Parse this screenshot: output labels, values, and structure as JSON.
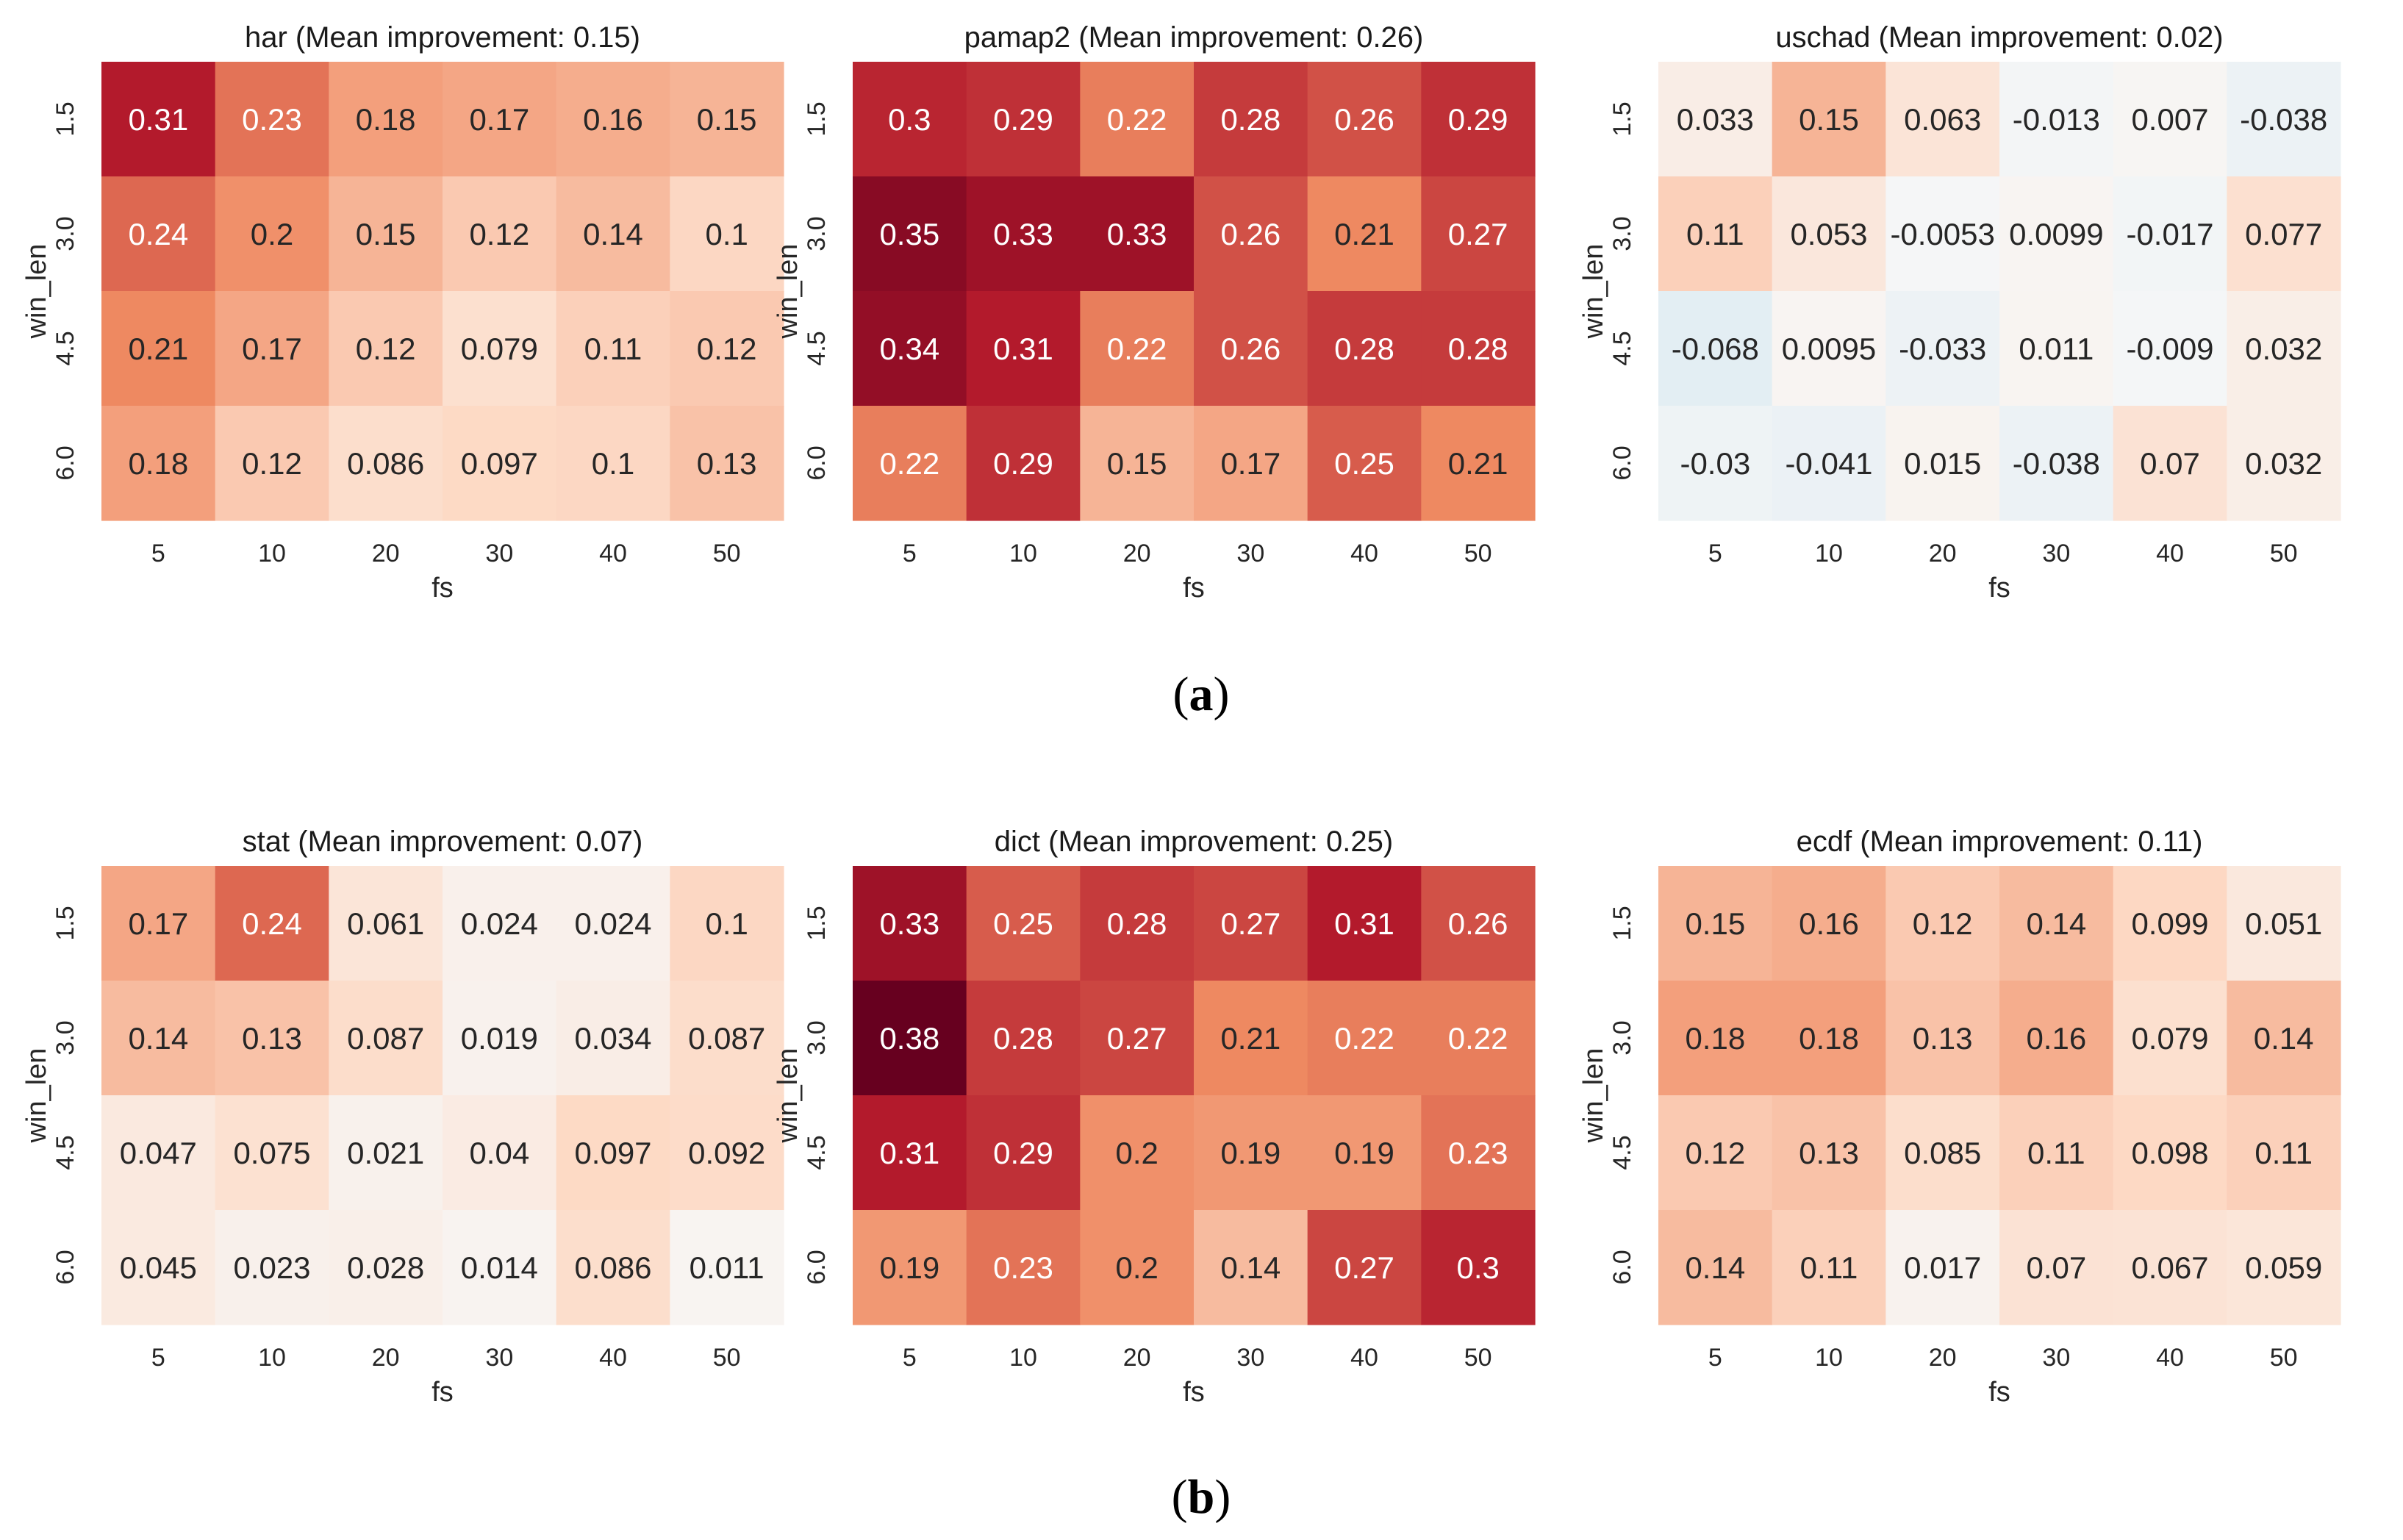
{
  "figure": {
    "panel_labels": [
      {
        "open": "(",
        "letter": "a",
        "close": ")"
      },
      {
        "open": "(",
        "letter": "b",
        "close": ")"
      }
    ]
  },
  "colors": {
    "negative_max": "#2166ac",
    "negative_light": "#d1e5f0",
    "zero": "#f7f7f7",
    "positive_light": "#fddbc7",
    "positive_mid": "#ef8a62",
    "positive_strong": "#b2182b",
    "positive_max": "#67001f"
  },
  "color_scale": {
    "vmin": -0.38,
    "vmax": 0.38
  },
  "chart_data": [
    {
      "type": "heatmap",
      "title": "har (Mean improvement: 0.15)",
      "xlabel": "fs",
      "ylabel": "win_len",
      "x_categories": [
        "5",
        "10",
        "20",
        "30",
        "40",
        "50"
      ],
      "y_categories": [
        "1.5",
        "3.0",
        "4.5",
        "6.0"
      ],
      "values": [
        [
          0.31,
          0.23,
          0.18,
          0.17,
          0.16,
          0.15
        ],
        [
          0.24,
          0.2,
          0.15,
          0.12,
          0.14,
          0.1
        ],
        [
          0.21,
          0.17,
          0.12,
          0.079,
          0.11,
          0.12
        ],
        [
          0.18,
          0.12,
          0.086,
          0.097,
          0.1,
          0.13
        ]
      ],
      "labels": [
        [
          "0.31",
          "0.23",
          "0.18",
          "0.17",
          "0.16",
          "0.15"
        ],
        [
          "0.24",
          "0.2",
          "0.15",
          "0.12",
          "0.14",
          "0.1"
        ],
        [
          "0.21",
          "0.17",
          "0.12",
          "0.079",
          "0.11",
          "0.12"
        ],
        [
          "0.18",
          "0.12",
          "0.086",
          "0.097",
          "0.1",
          "0.13"
        ]
      ]
    },
    {
      "type": "heatmap",
      "title": "pamap2 (Mean improvement: 0.26)",
      "xlabel": "fs",
      "ylabel": "win_len",
      "x_categories": [
        "5",
        "10",
        "20",
        "30",
        "40",
        "50"
      ],
      "y_categories": [
        "1.5",
        "3.0",
        "4.5",
        "6.0"
      ],
      "values": [
        [
          0.3,
          0.29,
          0.22,
          0.28,
          0.26,
          0.29
        ],
        [
          0.35,
          0.33,
          0.33,
          0.26,
          0.21,
          0.27
        ],
        [
          0.34,
          0.31,
          0.22,
          0.26,
          0.28,
          0.28
        ],
        [
          0.22,
          0.29,
          0.15,
          0.17,
          0.25,
          0.21
        ]
      ],
      "labels": [
        [
          "0.3",
          "0.29",
          "0.22",
          "0.28",
          "0.26",
          "0.29"
        ],
        [
          "0.35",
          "0.33",
          "0.33",
          "0.26",
          "0.21",
          "0.27"
        ],
        [
          "0.34",
          "0.31",
          "0.22",
          "0.26",
          "0.28",
          "0.28"
        ],
        [
          "0.22",
          "0.29",
          "0.15",
          "0.17",
          "0.25",
          "0.21"
        ]
      ]
    },
    {
      "type": "heatmap",
      "title": "uschad (Mean improvement: 0.02)",
      "xlabel": "fs",
      "ylabel": "win_len",
      "x_categories": [
        "5",
        "10",
        "20",
        "30",
        "40",
        "50"
      ],
      "y_categories": [
        "1.5",
        "3.0",
        "4.5",
        "6.0"
      ],
      "values": [
        [
          0.033,
          0.15,
          0.063,
          -0.013,
          0.007,
          -0.038
        ],
        [
          0.11,
          0.053,
          -0.0053,
          0.0099,
          -0.017,
          0.077
        ],
        [
          -0.068,
          0.0095,
          -0.033,
          0.011,
          -0.009,
          0.032
        ],
        [
          -0.03,
          -0.041,
          0.015,
          -0.038,
          0.07,
          0.032
        ]
      ],
      "labels": [
        [
          "0.033",
          "0.15",
          "0.063",
          "-0.013",
          "0.007",
          "-0.038"
        ],
        [
          "0.11",
          "0.053",
          "-0.0053",
          "0.0099",
          "-0.017",
          "0.077"
        ],
        [
          "-0.068",
          "0.0095",
          "-0.033",
          "0.011",
          "-0.009",
          "0.032"
        ],
        [
          "-0.03",
          "-0.041",
          "0.015",
          "-0.038",
          "0.07",
          "0.032"
        ]
      ]
    },
    {
      "type": "heatmap",
      "title": "stat (Mean improvement: 0.07)",
      "xlabel": "fs",
      "ylabel": "win_len",
      "x_categories": [
        "5",
        "10",
        "20",
        "30",
        "40",
        "50"
      ],
      "y_categories": [
        "1.5",
        "3.0",
        "4.5",
        "6.0"
      ],
      "values": [
        [
          0.17,
          0.24,
          0.061,
          0.024,
          0.024,
          0.1
        ],
        [
          0.14,
          0.13,
          0.087,
          0.019,
          0.034,
          0.087
        ],
        [
          0.047,
          0.075,
          0.021,
          0.04,
          0.097,
          0.092
        ],
        [
          0.045,
          0.023,
          0.028,
          0.014,
          0.086,
          0.011
        ]
      ],
      "labels": [
        [
          "0.17",
          "0.24",
          "0.061",
          "0.024",
          "0.024",
          "0.1"
        ],
        [
          "0.14",
          "0.13",
          "0.087",
          "0.019",
          "0.034",
          "0.087"
        ],
        [
          "0.047",
          "0.075",
          "0.021",
          "0.04",
          "0.097",
          "0.092"
        ],
        [
          "0.045",
          "0.023",
          "0.028",
          "0.014",
          "0.086",
          "0.011"
        ]
      ]
    },
    {
      "type": "heatmap",
      "title": "dict (Mean improvement: 0.25)",
      "xlabel": "fs",
      "ylabel": "win_len",
      "x_categories": [
        "5",
        "10",
        "20",
        "30",
        "40",
        "50"
      ],
      "y_categories": [
        "1.5",
        "3.0",
        "4.5",
        "6.0"
      ],
      "values": [
        [
          0.33,
          0.25,
          0.28,
          0.27,
          0.31,
          0.26
        ],
        [
          0.38,
          0.28,
          0.27,
          0.21,
          0.22,
          0.22
        ],
        [
          0.31,
          0.29,
          0.2,
          0.19,
          0.19,
          0.23
        ],
        [
          0.19,
          0.23,
          0.2,
          0.14,
          0.27,
          0.3
        ]
      ],
      "labels": [
        [
          "0.33",
          "0.25",
          "0.28",
          "0.27",
          "0.31",
          "0.26"
        ],
        [
          "0.38",
          "0.28",
          "0.27",
          "0.21",
          "0.22",
          "0.22"
        ],
        [
          "0.31",
          "0.29",
          "0.2",
          "0.19",
          "0.19",
          "0.23"
        ],
        [
          "0.19",
          "0.23",
          "0.2",
          "0.14",
          "0.27",
          "0.3"
        ]
      ]
    },
    {
      "type": "heatmap",
      "title": "ecdf (Mean improvement: 0.11)",
      "xlabel": "fs",
      "ylabel": "win_len",
      "x_categories": [
        "5",
        "10",
        "20",
        "30",
        "40",
        "50"
      ],
      "y_categories": [
        "1.5",
        "3.0",
        "4.5",
        "6.0"
      ],
      "values": [
        [
          0.15,
          0.16,
          0.12,
          0.14,
          0.099,
          0.051
        ],
        [
          0.18,
          0.18,
          0.13,
          0.16,
          0.079,
          0.14
        ],
        [
          0.12,
          0.13,
          0.085,
          0.11,
          0.098,
          0.11
        ],
        [
          0.14,
          0.11,
          0.017,
          0.07,
          0.067,
          0.059
        ]
      ],
      "labels": [
        [
          "0.15",
          "0.16",
          "0.12",
          "0.14",
          "0.099",
          "0.051"
        ],
        [
          "0.18",
          "0.18",
          "0.13",
          "0.16",
          "0.079",
          "0.14"
        ],
        [
          "0.12",
          "0.13",
          "0.085",
          "0.11",
          "0.098",
          "0.11"
        ],
        [
          "0.14",
          "0.11",
          "0.017",
          "0.07",
          "0.067",
          "0.059"
        ]
      ]
    }
  ]
}
